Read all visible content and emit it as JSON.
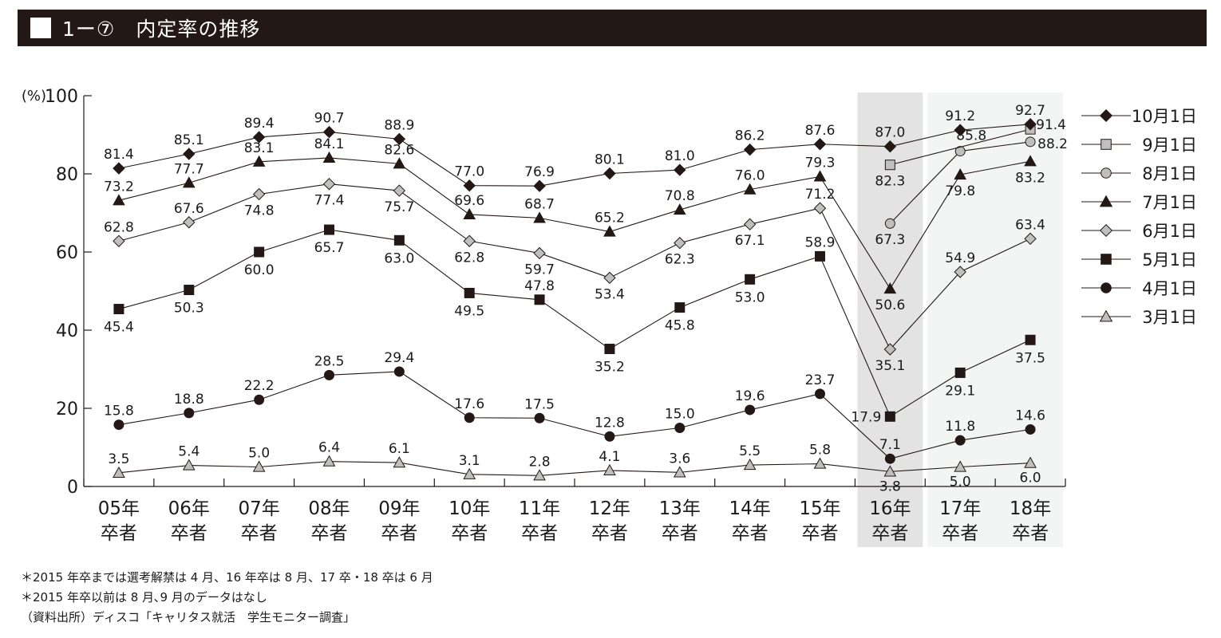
{
  "header": {
    "title": "1ー⑦　内定率の推移"
  },
  "chart_data": {
    "type": "line",
    "y_unit_label": "(%)",
    "ylim": [
      0,
      100
    ],
    "y_ticks": [
      "0",
      "20",
      "40",
      "60",
      "80",
      "100"
    ],
    "categories": [
      {
        "year": "05年",
        "suffix": "卒者"
      },
      {
        "year": "06年",
        "suffix": "卒者"
      },
      {
        "year": "07年",
        "suffix": "卒者"
      },
      {
        "year": "08年",
        "suffix": "卒者"
      },
      {
        "year": "09年",
        "suffix": "卒者"
      },
      {
        "year": "10年",
        "suffix": "卒者"
      },
      {
        "year": "11年",
        "suffix": "卒者"
      },
      {
        "year": "12年",
        "suffix": "卒者"
      },
      {
        "year": "13年",
        "suffix": "卒者"
      },
      {
        "year": "14年",
        "suffix": "卒者"
      },
      {
        "year": "15年",
        "suffix": "卒者"
      },
      {
        "year": "16年",
        "suffix": "卒者"
      },
      {
        "year": "17年",
        "suffix": "卒者"
      },
      {
        "year": "18年",
        "suffix": "卒者"
      }
    ],
    "highlight_bands": [
      {
        "category_index": 11,
        "color": "#e3e3e3"
      },
      {
        "from_index": 12,
        "to_index": 13,
        "color": "#f3f4f4"
      }
    ],
    "series": [
      {
        "name": "10月1日",
        "marker": "diamond",
        "fill": "#231815",
        "values": [
          81.4,
          85.1,
          89.4,
          90.7,
          88.9,
          77.0,
          76.9,
          80.1,
          81.0,
          86.2,
          87.6,
          87.0,
          91.2,
          92.7
        ],
        "labels": [
          "81.4",
          "85.1",
          "89.4",
          "90.7",
          "88.9",
          "77.0",
          "76.9",
          "80.1",
          "81.0",
          "86.2",
          "87.6",
          "87.0",
          "91.2",
          "92.7"
        ]
      },
      {
        "name": "9月1日",
        "marker": "square",
        "fill": "#bfbfbf",
        "values": [
          null,
          null,
          null,
          null,
          null,
          null,
          null,
          null,
          null,
          null,
          null,
          82.3,
          null,
          91.4
        ],
        "labels": [
          "",
          "",
          "",
          "",
          "",
          "",
          "",
          "",
          "",
          "",
          "",
          "82.3",
          "",
          "91.4"
        ]
      },
      {
        "name": "8月1日",
        "marker": "circle",
        "fill": "#bfbfbf",
        "values": [
          null,
          null,
          null,
          null,
          null,
          null,
          null,
          null,
          null,
          null,
          null,
          67.3,
          85.8,
          88.2
        ],
        "labels": [
          "",
          "",
          "",
          "",
          "",
          "",
          "",
          "",
          "",
          "",
          "",
          "67.3",
          "85.8",
          "88.2"
        ]
      },
      {
        "name": "7月1日",
        "marker": "triangle",
        "fill": "#231815",
        "values": [
          73.2,
          77.7,
          83.1,
          84.1,
          82.6,
          69.6,
          68.7,
          65.2,
          70.8,
          76.0,
          79.3,
          50.6,
          79.8,
          83.2
        ],
        "labels": [
          "73.2",
          "77.7",
          "83.1",
          "84.1",
          "82.6",
          "69.6",
          "68.7",
          "65.2",
          "70.8",
          "76.0",
          "79.3",
          "50.6",
          "79.8",
          "83.2"
        ]
      },
      {
        "name": "6月1日",
        "marker": "diamond",
        "fill": "#bfbfbf",
        "values": [
          62.8,
          67.6,
          74.8,
          77.4,
          75.7,
          62.8,
          59.7,
          53.4,
          62.3,
          67.1,
          71.2,
          35.1,
          54.9,
          63.4
        ],
        "labels": [
          "62.8",
          "67.6",
          "74.8",
          "77.4",
          "75.7",
          "62.8",
          "59.7",
          "53.4",
          "62.3",
          "67.1",
          "71.2",
          "35.1",
          "54.9",
          "63.4"
        ]
      },
      {
        "name": "5月1日",
        "marker": "square",
        "fill": "#231815",
        "values": [
          45.4,
          50.3,
          60.0,
          65.7,
          63.0,
          49.5,
          47.8,
          35.2,
          45.8,
          53.0,
          58.9,
          17.9,
          29.1,
          37.5
        ],
        "labels": [
          "45.4",
          "50.3",
          "60.0",
          "65.7",
          "63.0",
          "49.5",
          "47.8",
          "35.2",
          "45.8",
          "53.0",
          "58.9",
          "17.9",
          "29.1",
          "37.5"
        ]
      },
      {
        "name": "4月1日",
        "marker": "circle",
        "fill": "#231815",
        "values": [
          15.8,
          18.8,
          22.2,
          28.5,
          29.4,
          17.6,
          17.5,
          12.8,
          15.0,
          19.6,
          23.7,
          7.1,
          11.8,
          14.6
        ],
        "labels": [
          "15.8",
          "18.8",
          "22.2",
          "28.5",
          "29.4",
          "17.6",
          "17.5",
          "12.8",
          "15.0",
          "19.6",
          "23.7",
          "7.1",
          "11.8",
          "14.6"
        ]
      },
      {
        "name": "3月1日",
        "marker": "triangle",
        "fill": "#bfbfbf",
        "values": [
          3.5,
          5.4,
          5.0,
          6.4,
          6.1,
          3.1,
          2.8,
          4.1,
          3.6,
          5.5,
          5.8,
          3.8,
          5.0,
          6.0
        ],
        "labels": [
          "3.5",
          "5.4",
          "5.0",
          "6.4",
          "6.1",
          "3.1",
          "2.8",
          "4.1",
          "3.6",
          "5.5",
          "5.8",
          "3.8",
          "5.0",
          "6.0"
        ]
      }
    ]
  },
  "notes": [
    "＊2015 年卒までは選考解禁は 4 月、16 年卒は 8 月、17 卒・18 卒は 6 月",
    "＊2015 年卒以前は 8 月､9 月のデータはなし",
    "（資料出所）ディスコ「キャリタス就活　学生モニター調査」"
  ]
}
